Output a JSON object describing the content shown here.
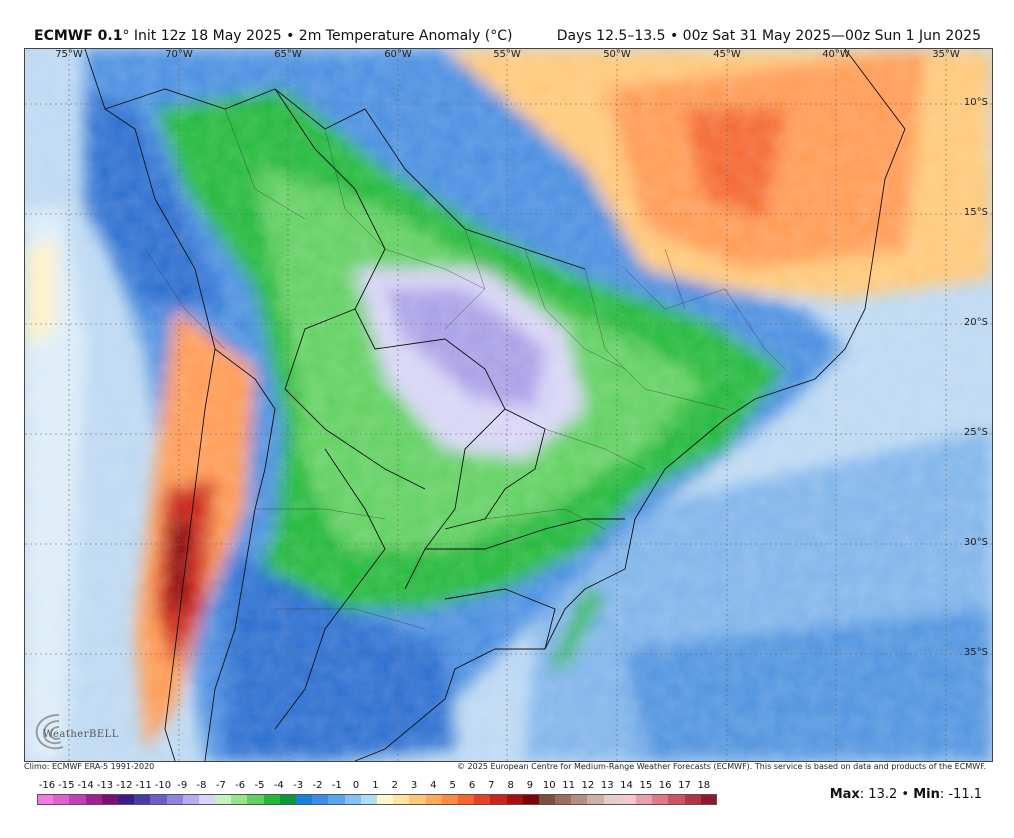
{
  "header": {
    "model_name": "ECMWF 0.1",
    "degree_mark": "°",
    "title_rest": "Init 12z 18 May 2025 • 2m Temperature Anomaly (°C)",
    "valid_text": "Days 12.5–13.5 • 00z Sat 31 May 2025—00z Sun 1 Jun 2025"
  },
  "map": {
    "lon_labels": [
      "75°W",
      "70°W",
      "65°W",
      "60°W",
      "55°W",
      "50°W",
      "45°W",
      "40°W",
      "35°W"
    ],
    "lat_labels": [
      "10°S",
      "15°S",
      "20°S",
      "25°S",
      "30°S",
      "35°S"
    ],
    "logo_text": "WeatherBELL"
  },
  "footer": {
    "climo": "Climo: ECMWF ERA-5 1991-2020",
    "copyright": "© 2025 European Centre for Medium-Range Weather Forecasts (ECMWF). This service is based on data and products of the ECMWF."
  },
  "colorbar": {
    "ticks": [
      "-16",
      "-15",
      "-14",
      "-13",
      "-12",
      "-11",
      "-10",
      "-9",
      "-8",
      "-7",
      "-6",
      "-5",
      "-4",
      "-3",
      "-2",
      "-1",
      "0",
      "1",
      "2",
      "3",
      "4",
      "5",
      "6",
      "7",
      "8",
      "9",
      "10",
      "11",
      "12",
      "13",
      "14",
      "15",
      "16",
      "17",
      "18"
    ],
    "colors": [
      "#f07ee0",
      "#e060d0",
      "#c040b8",
      "#a0208f",
      "#7a1070",
      "#3c1c86",
      "#4a3aa8",
      "#6a5ec8",
      "#8e86dc",
      "#b4aeec",
      "#d8d4f6",
      "#c8f0c0",
      "#98e48c",
      "#60d060",
      "#22b83a",
      "#0a9838",
      "#1a7fd8",
      "#3a8ee6",
      "#5aa6ee",
      "#84c2f4",
      "#b0dcf8",
      "#fff6d0",
      "#ffe4a0",
      "#ffc878",
      "#ffaa5a",
      "#ff8a42",
      "#f4662e",
      "#e44222",
      "#cc2418",
      "#a81010",
      "#7c0606",
      "#7a5040",
      "#9a6e5e",
      "#b48e80",
      "#cfb0a6",
      "#e4cfc8",
      "#f4c8cc",
      "#eaa0aa",
      "#de7a88",
      "#cc5466",
      "#b03446",
      "#8c1a2c"
    ]
  },
  "stats": {
    "max_label": "Max",
    "max_value": ": 13.2 • ",
    "min_label": "Min",
    "min_value": ": -11.1"
  }
}
